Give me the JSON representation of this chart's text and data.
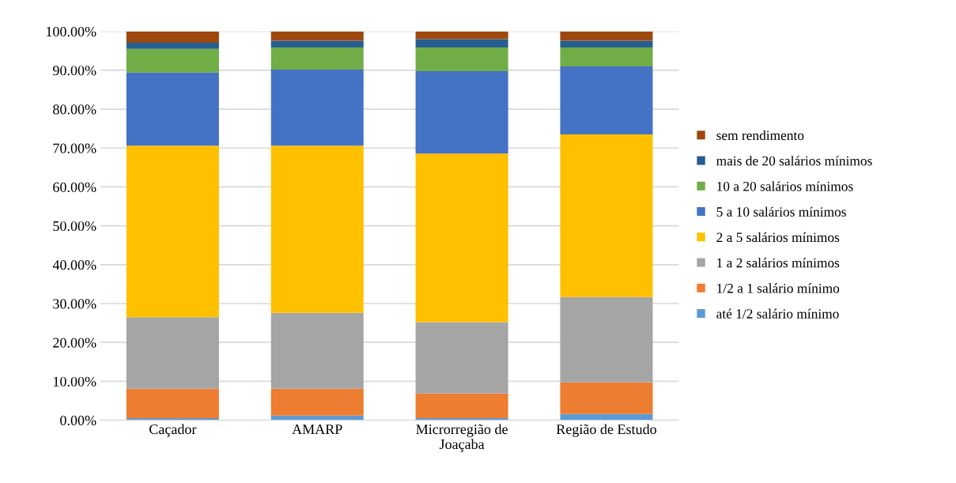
{
  "chart_data": {
    "type": "bar",
    "stacked": true,
    "categories": [
      "Caçador",
      "AMARP",
      "Microrregião de\nJoaçaba",
      "Região de Estudo"
    ],
    "series": [
      {
        "name": "até 1/2 salário mínimo",
        "color": "#5b9bd5",
        "values": [
          0.5,
          1.2,
          0.5,
          1.6
        ]
      },
      {
        "name": "1/2 a 1 salário mínimo",
        "color": "#ed7d31",
        "values": [
          7.6,
          6.9,
          6.4,
          8.1
        ]
      },
      {
        "name": "1 a 2 salários mínimos",
        "color": "#a5a5a5",
        "values": [
          18.4,
          19.5,
          18.3,
          22.0
        ]
      },
      {
        "name": "2 a 5 salários mínimos",
        "color": "#ffc000",
        "values": [
          44.1,
          43.0,
          43.4,
          41.8
        ]
      },
      {
        "name": "5 a 10 salários mínimos",
        "color": "#4472c4",
        "values": [
          18.8,
          19.6,
          21.2,
          17.5
        ]
      },
      {
        "name": "10 a 20 salários mínimos",
        "color": "#70ad47",
        "values": [
          6.1,
          5.7,
          6.1,
          4.9
        ]
      },
      {
        "name": "mais de 20 salários mínimos",
        "color": "#255e91",
        "values": [
          1.6,
          1.7,
          2.1,
          1.7
        ]
      },
      {
        "name": "sem rendimento",
        "color": "#9e480e",
        "values": [
          2.9,
          2.4,
          2.0,
          2.4
        ]
      }
    ],
    "ylim": [
      0,
      100
    ],
    "yticks": [
      {
        "value": 0,
        "label": "0.00%"
      },
      {
        "value": 10,
        "label": "10.00%"
      },
      {
        "value": 20,
        "label": "20.00%"
      },
      {
        "value": 30,
        "label": "30.00%"
      },
      {
        "value": 40,
        "label": "40.00%"
      },
      {
        "value": 50,
        "label": "50.00%"
      },
      {
        "value": 60,
        "label": "60.00%"
      },
      {
        "value": 70,
        "label": "70.00%"
      },
      {
        "value": 80,
        "label": "80.00%"
      },
      {
        "value": 90,
        "label": "90.00%"
      },
      {
        "value": 100,
        "label": "100.00%"
      }
    ],
    "grid": "y",
    "legend": "right"
  }
}
